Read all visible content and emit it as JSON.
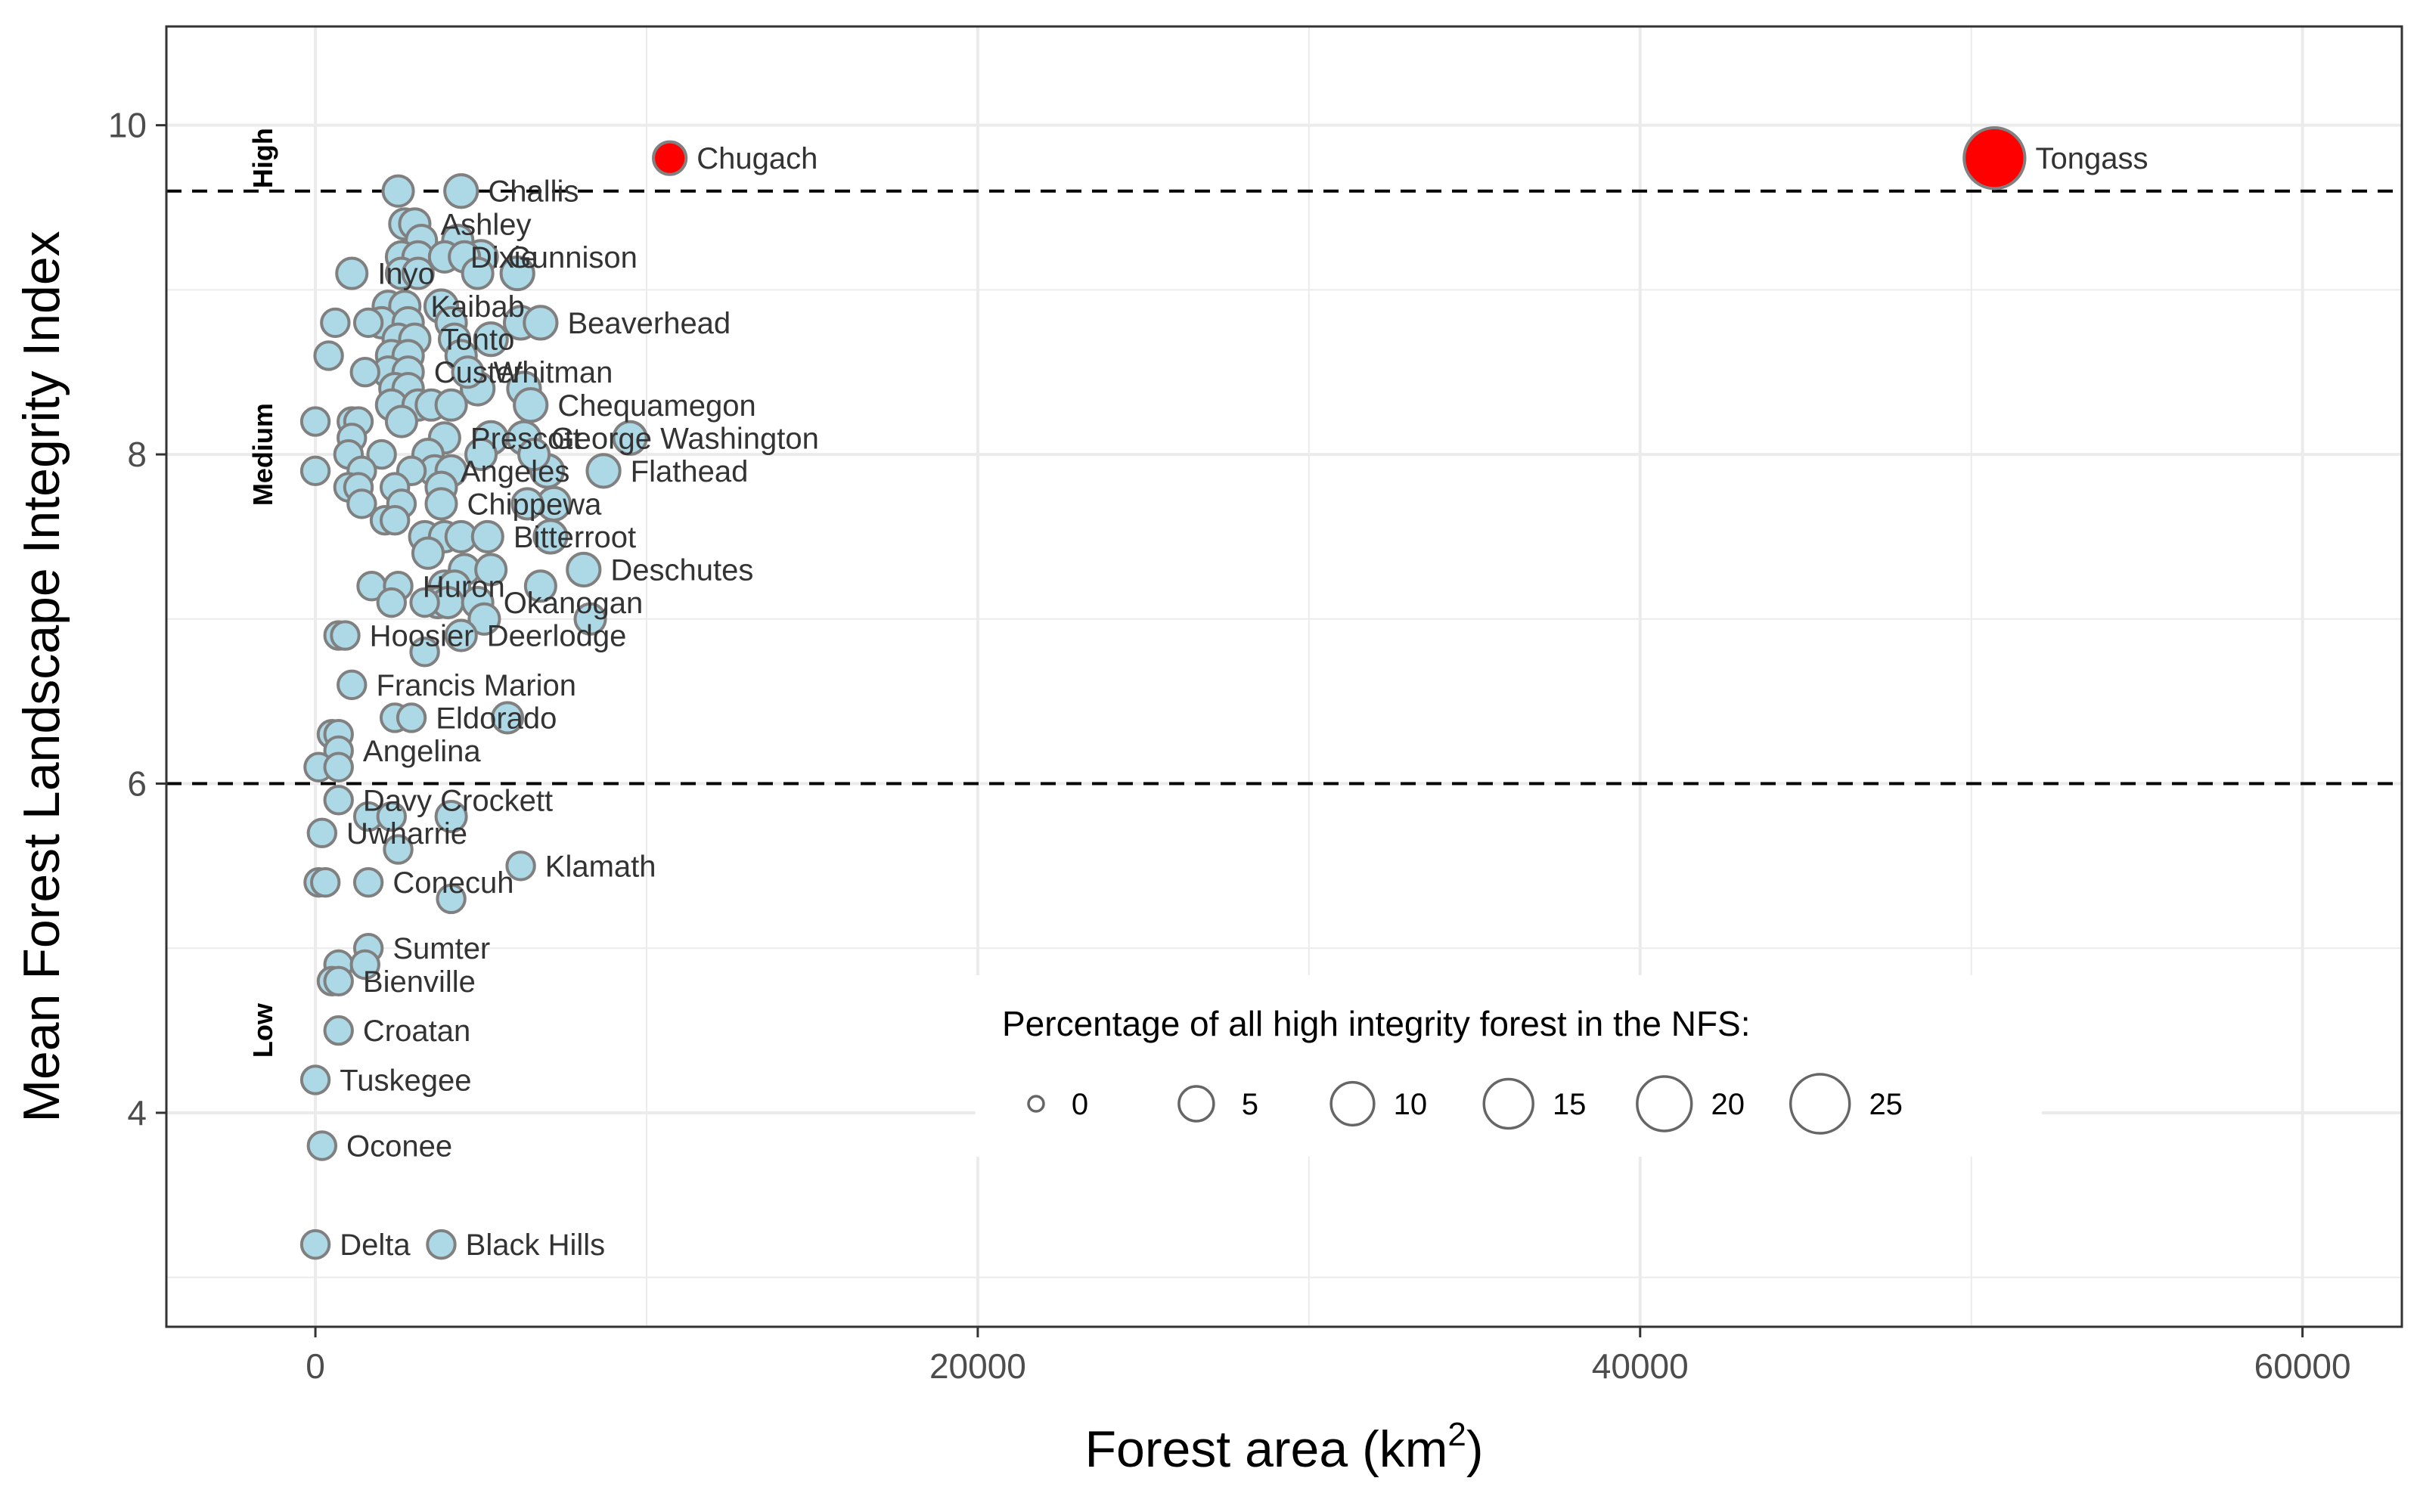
{
  "chart_data": {
    "type": "scatter",
    "title": "",
    "xlabel": "Forest area (km",
    "xlabel_superscript": "2",
    "xlabel_close": ")",
    "ylabel": "Mean Forest Landscape Integrity Index",
    "xlim": [
      -4500,
      63000
    ],
    "ylim": [
      2.7,
      10.6
    ],
    "x_ticks": [
      0,
      20000,
      40000,
      60000
    ],
    "x_tick_labels": [
      "0",
      "20000",
      "40000",
      "60000"
    ],
    "y_ticks": [
      4,
      6,
      8,
      10
    ],
    "y_tick_labels": [
      "4",
      "6",
      "8",
      "10"
    ],
    "grid": true,
    "thresholds": [
      6.0,
      9.6
    ],
    "bands": [
      {
        "label": "High",
        "y": 9.8
      },
      {
        "label": "Medium",
        "y": 8.0
      },
      {
        "label": "Low",
        "y": 4.5
      }
    ],
    "colors": {
      "point_fill": "#add8e6",
      "point_stroke": "#808080",
      "highlight_fill": "#ff0000",
      "grid": "#ebebeb",
      "threshold": "#000000",
      "panel_border": "#333333"
    },
    "legend": {
      "title": "Percentage of all high integrity forest in the NFS:",
      "placement": "bottom-right",
      "sizes": [
        0,
        5,
        10,
        15,
        20,
        25
      ],
      "labels": [
        "0",
        "5",
        "10",
        "15",
        "20",
        "25"
      ]
    },
    "points": [
      {
        "x": 50700,
        "y": 9.8,
        "size": 27,
        "highlight": true,
        "label": "Tongass"
      },
      {
        "x": 10700,
        "y": 9.8,
        "size": 4,
        "highlight": true,
        "label": "Chugach"
      },
      {
        "x": 2500,
        "y": 9.6,
        "size": 3
      },
      {
        "x": 4400,
        "y": 9.6,
        "size": 4,
        "label": "Challis"
      },
      {
        "x": 2700,
        "y": 9.4,
        "size": 3
      },
      {
        "x": 3000,
        "y": 9.4,
        "size": 3,
        "label": "Ashley"
      },
      {
        "x": 3200,
        "y": 9.3,
        "size": 3
      },
      {
        "x": 4300,
        "y": 9.3,
        "size": 3
      },
      {
        "x": 2600,
        "y": 9.2,
        "size": 3
      },
      {
        "x": 3100,
        "y": 9.2,
        "size": 3
      },
      {
        "x": 3900,
        "y": 9.2,
        "size": 3,
        "label": "Dixie"
      },
      {
        "x": 4500,
        "y": 9.2,
        "size": 3
      },
      {
        "x": 5000,
        "y": 9.2,
        "size": 4,
        "label": "Gunnison"
      },
      {
        "x": 1100,
        "y": 9.1,
        "size": 3,
        "label": "Inyo"
      },
      {
        "x": 2600,
        "y": 9.1,
        "size": 3
      },
      {
        "x": 3100,
        "y": 9.1,
        "size": 3
      },
      {
        "x": 4900,
        "y": 9.1,
        "size": 3
      },
      {
        "x": 6100,
        "y": 9.1,
        "size": 4
      },
      {
        "x": 2200,
        "y": 8.9,
        "size": 3
      },
      {
        "x": 2700,
        "y": 8.9,
        "size": 3,
        "label": "Kaibab"
      },
      {
        "x": 3800,
        "y": 8.9,
        "size": 4
      },
      {
        "x": 600,
        "y": 8.8,
        "size": 2
      },
      {
        "x": 1600,
        "y": 8.8,
        "size": 2
      },
      {
        "x": 2000,
        "y": 8.8,
        "size": 3
      },
      {
        "x": 2800,
        "y": 8.8,
        "size": 3
      },
      {
        "x": 4100,
        "y": 8.8,
        "size": 3
      },
      {
        "x": 6200,
        "y": 8.8,
        "size": 4
      },
      {
        "x": 6800,
        "y": 8.8,
        "size": 4,
        "label": "Beaverhead"
      },
      {
        "x": 2500,
        "y": 8.7,
        "size": 3
      },
      {
        "x": 3000,
        "y": 8.7,
        "size": 3,
        "label": "Tonto"
      },
      {
        "x": 4200,
        "y": 8.7,
        "size": 3
      },
      {
        "x": 5300,
        "y": 8.7,
        "size": 4
      },
      {
        "x": 400,
        "y": 8.6,
        "size": 2
      },
      {
        "x": 2300,
        "y": 8.6,
        "size": 3
      },
      {
        "x": 2800,
        "y": 8.6,
        "size": 3
      },
      {
        "x": 4400,
        "y": 8.6,
        "size": 3
      },
      {
        "x": 1500,
        "y": 8.5,
        "size": 2
      },
      {
        "x": 2200,
        "y": 8.5,
        "size": 3
      },
      {
        "x": 2800,
        "y": 8.5,
        "size": 3,
        "label": "Custer"
      },
      {
        "x": 4600,
        "y": 8.5,
        "size": 3,
        "label": "Whitman"
      },
      {
        "x": 2400,
        "y": 8.4,
        "size": 3
      },
      {
        "x": 2800,
        "y": 8.4,
        "size": 3
      },
      {
        "x": 4900,
        "y": 8.4,
        "size": 4
      },
      {
        "x": 6300,
        "y": 8.4,
        "size": 4
      },
      {
        "x": 2300,
        "y": 8.3,
        "size": 3
      },
      {
        "x": 3100,
        "y": 8.3,
        "size": 3
      },
      {
        "x": 3500,
        "y": 8.3,
        "size": 3
      },
      {
        "x": 4100,
        "y": 8.3,
        "size": 3
      },
      {
        "x": 6500,
        "y": 8.3,
        "size": 4,
        "label": "Chequamegon"
      },
      {
        "x": 0,
        "y": 8.2,
        "size": 2
      },
      {
        "x": 1100,
        "y": 8.2,
        "size": 2
      },
      {
        "x": 1300,
        "y": 8.2,
        "size": 2
      },
      {
        "x": 2600,
        "y": 8.2,
        "size": 3
      },
      {
        "x": 1100,
        "y": 8.1,
        "size": 2
      },
      {
        "x": 3900,
        "y": 8.1,
        "size": 3,
        "label": "Prescott"
      },
      {
        "x": 5300,
        "y": 8.1,
        "size": 4
      },
      {
        "x": 6300,
        "y": 8.1,
        "size": 4,
        "label": "George Washington"
      },
      {
        "x": 9500,
        "y": 8.1,
        "size": 4
      },
      {
        "x": 1000,
        "y": 8.0,
        "size": 2
      },
      {
        "x": 2000,
        "y": 8.0,
        "size": 2
      },
      {
        "x": 3400,
        "y": 8.0,
        "size": 3
      },
      {
        "x": 5000,
        "y": 8.0,
        "size": 3
      },
      {
        "x": 6600,
        "y": 8.0,
        "size": 3
      },
      {
        "x": 0,
        "y": 7.9,
        "size": 2
      },
      {
        "x": 1400,
        "y": 7.9,
        "size": 2
      },
      {
        "x": 2900,
        "y": 7.9,
        "size": 2
      },
      {
        "x": 3600,
        "y": 7.9,
        "size": 3,
        "label": "Angeles"
      },
      {
        "x": 4100,
        "y": 7.9,
        "size": 3
      },
      {
        "x": 7000,
        "y": 7.9,
        "size": 4
      },
      {
        "x": 8700,
        "y": 7.9,
        "size": 4,
        "label": "Flathead"
      },
      {
        "x": 1000,
        "y": 7.8,
        "size": 2
      },
      {
        "x": 1300,
        "y": 7.8,
        "size": 2
      },
      {
        "x": 2400,
        "y": 7.8,
        "size": 2
      },
      {
        "x": 3800,
        "y": 7.8,
        "size": 3
      },
      {
        "x": 1400,
        "y": 7.7,
        "size": 2
      },
      {
        "x": 2600,
        "y": 7.7,
        "size": 2
      },
      {
        "x": 3800,
        "y": 7.7,
        "size": 3,
        "label": "Chippewa"
      },
      {
        "x": 6400,
        "y": 7.7,
        "size": 3
      },
      {
        "x": 7200,
        "y": 7.7,
        "size": 4
      },
      {
        "x": 2100,
        "y": 7.6,
        "size": 2
      },
      {
        "x": 2400,
        "y": 7.6,
        "size": 2
      },
      {
        "x": 3300,
        "y": 7.5,
        "size": 3
      },
      {
        "x": 3900,
        "y": 7.5,
        "size": 3
      },
      {
        "x": 4400,
        "y": 7.5,
        "size": 3
      },
      {
        "x": 5200,
        "y": 7.5,
        "size": 3,
        "label": "Bitterroot"
      },
      {
        "x": 7100,
        "y": 7.5,
        "size": 4
      },
      {
        "x": 3400,
        "y": 7.4,
        "size": 3
      },
      {
        "x": 4500,
        "y": 7.3,
        "size": 3
      },
      {
        "x": 5300,
        "y": 7.3,
        "size": 3
      },
      {
        "x": 8100,
        "y": 7.3,
        "size": 4,
        "label": "Deschutes"
      },
      {
        "x": 1700,
        "y": 7.2,
        "size": 2
      },
      {
        "x": 2500,
        "y": 7.2,
        "size": 2,
        "label": "Huron"
      },
      {
        "x": 3900,
        "y": 7.2,
        "size": 3
      },
      {
        "x": 4200,
        "y": 7.2,
        "size": 3
      },
      {
        "x": 6800,
        "y": 7.2,
        "size": 3
      },
      {
        "x": 2300,
        "y": 7.1,
        "size": 2
      },
      {
        "x": 3300,
        "y": 7.1,
        "size": 2
      },
      {
        "x": 3700,
        "y": 7.1,
        "size": 3
      },
      {
        "x": 4000,
        "y": 7.1,
        "size": 3
      },
      {
        "x": 4900,
        "y": 7.1,
        "size": 3,
        "label": "Okanogan"
      },
      {
        "x": 5100,
        "y": 7.0,
        "size": 3
      },
      {
        "x": 8300,
        "y": 7.0,
        "size": 3
      },
      {
        "x": 700,
        "y": 6.9,
        "size": 2
      },
      {
        "x": 900,
        "y": 6.9,
        "size": 2,
        "label": "Hoosier"
      },
      {
        "x": 4400,
        "y": 6.9,
        "size": 3,
        "label": "Deerlodge"
      },
      {
        "x": 3300,
        "y": 6.8,
        "size": 2
      },
      {
        "x": 1100,
        "y": 6.6,
        "size": 2,
        "label": "Francis Marion"
      },
      {
        "x": 2400,
        "y": 6.4,
        "size": 2
      },
      {
        "x": 2900,
        "y": 6.4,
        "size": 2,
        "label": "Eldorado"
      },
      {
        "x": 5800,
        "y": 6.4,
        "size": 3
      },
      {
        "x": 500,
        "y": 6.3,
        "size": 2
      },
      {
        "x": 700,
        "y": 6.3,
        "size": 2
      },
      {
        "x": 700,
        "y": 6.2,
        "size": 2,
        "label": "Angelina"
      },
      {
        "x": 100,
        "y": 6.1,
        "size": 2
      },
      {
        "x": 700,
        "y": 6.1,
        "size": 2
      },
      {
        "x": 700,
        "y": 5.9,
        "size": 2,
        "label": "Davy Crockett"
      },
      {
        "x": 1600,
        "y": 5.8,
        "size": 2
      },
      {
        "x": 2300,
        "y": 5.8,
        "size": 2
      },
      {
        "x": 4100,
        "y": 5.8,
        "size": 3
      },
      {
        "x": 200,
        "y": 5.7,
        "size": 2,
        "label": "Uwharrie"
      },
      {
        "x": 2500,
        "y": 5.6,
        "size": 2
      },
      {
        "x": 6200,
        "y": 5.5,
        "size": 2,
        "label": "Klamath"
      },
      {
        "x": 100,
        "y": 5.4,
        "size": 2
      },
      {
        "x": 300,
        "y": 5.4,
        "size": 2
      },
      {
        "x": 1600,
        "y": 5.4,
        "size": 2,
        "label": "Conecuh"
      },
      {
        "x": 4100,
        "y": 5.3,
        "size": 2
      },
      {
        "x": 1600,
        "y": 5.0,
        "size": 2,
        "label": "Sumter"
      },
      {
        "x": 700,
        "y": 4.9,
        "size": 2
      },
      {
        "x": 1500,
        "y": 4.9,
        "size": 2
      },
      {
        "x": 500,
        "y": 4.8,
        "size": 2
      },
      {
        "x": 700,
        "y": 4.8,
        "size": 2,
        "label": "Bienville"
      },
      {
        "x": 700,
        "y": 4.5,
        "size": 2,
        "label": "Croatan"
      },
      {
        "x": 0,
        "y": 4.2,
        "size": 2,
        "label": "Tuskegee"
      },
      {
        "x": 200,
        "y": 3.8,
        "size": 2,
        "label": "Oconee"
      },
      {
        "x": 0,
        "y": 3.2,
        "size": 2,
        "label": "Delta"
      },
      {
        "x": 3800,
        "y": 3.2,
        "size": 2,
        "label": "Black Hills"
      }
    ]
  }
}
